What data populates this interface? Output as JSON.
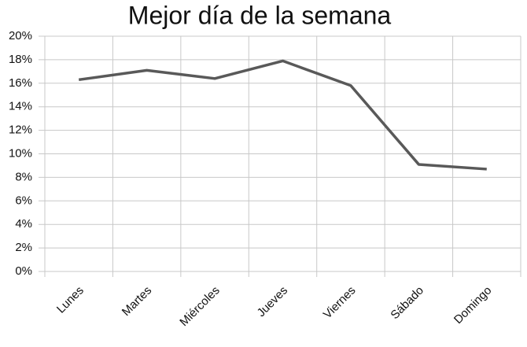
{
  "chart_data": {
    "type": "line",
    "title": "Mejor día de la semana",
    "categories": [
      "Lunes",
      "Martes",
      "Miércoles",
      "Jueves",
      "Viernes",
      "Sábado",
      "Domingo"
    ],
    "values": [
      16.3,
      17.1,
      16.4,
      17.9,
      15.8,
      9.1,
      8.7
    ],
    "color": "#595959",
    "ylim": [
      0,
      20
    ],
    "yticks": [
      {
        "value": 0,
        "label": "0%"
      },
      {
        "value": 2,
        "label": "2%"
      },
      {
        "value": 4,
        "label": "4%"
      },
      {
        "value": 6,
        "label": "6%"
      },
      {
        "value": 8,
        "label": "8%"
      },
      {
        "value": 10,
        "label": "10%"
      },
      {
        "value": 12,
        "label": "12%"
      },
      {
        "value": 14,
        "label": "14%"
      },
      {
        "value": 16,
        "label": "16%"
      },
      {
        "value": 18,
        "label": "18%"
      },
      {
        "value": 20,
        "label": "20%"
      }
    ],
    "grid": true
  }
}
